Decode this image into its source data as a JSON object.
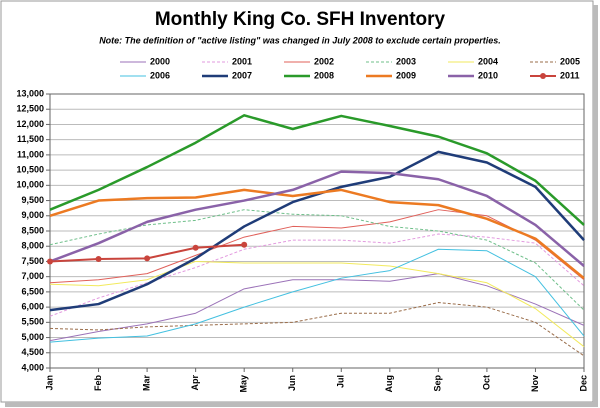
{
  "chart_data": {
    "type": "line",
    "title": "Monthly King Co. SFH Inventory",
    "subtitle": "Note: The definition of \"active listing\" was changed in July 2008 to exclude certain properties.",
    "categories": [
      "Jan",
      "Feb",
      "Mar",
      "Apr",
      "May",
      "Jun",
      "Jul",
      "Aug",
      "Sep",
      "Oct",
      "Nov",
      "Dec"
    ],
    "ylim": [
      4000,
      13000
    ],
    "yticks": [
      {
        "value": 4000,
        "label": "4,000"
      },
      {
        "value": 4500,
        "label": "4,500"
      },
      {
        "value": 5000,
        "label": "5,000"
      },
      {
        "value": 5500,
        "label": "5,500"
      },
      {
        "value": 6000,
        "label": "6,000"
      },
      {
        "value": 6500,
        "label": "6,500"
      },
      {
        "value": 7000,
        "label": "7,000"
      },
      {
        "value": 7500,
        "label": "7,500"
      },
      {
        "value": 8000,
        "label": "8,000"
      },
      {
        "value": 8500,
        "label": "8,500"
      },
      {
        "value": 9000,
        "label": "9,000"
      },
      {
        "value": 9500,
        "label": "9,500"
      },
      {
        "value": 10000,
        "label": "10,000"
      },
      {
        "value": 10500,
        "label": "10,500"
      },
      {
        "value": 11000,
        "label": "11,000"
      },
      {
        "value": 11500,
        "label": "11,500"
      },
      {
        "value": 12000,
        "label": "12,000"
      },
      {
        "value": 12500,
        "label": "12,500"
      },
      {
        "value": 13000,
        "label": "13,000"
      }
    ],
    "grid": true,
    "legend": "top",
    "series": [
      {
        "name": "2000",
        "color": "#9b72b8",
        "values": [
          4900,
          5200,
          5450,
          5800,
          6600,
          6900,
          6900,
          6850,
          7100,
          6700,
          6100,
          5400
        ]
      },
      {
        "name": "2001",
        "color": "#e29adf",
        "dashed": true,
        "values": [
          5700,
          6300,
          6800,
          7300,
          7900,
          8200,
          8200,
          8100,
          8400,
          8300,
          8100,
          6700
        ]
      },
      {
        "name": "2002",
        "color": "#e0605a",
        "values": [
          6800,
          6900,
          7100,
          7700,
          8300,
          8650,
          8600,
          8800,
          9200,
          9000,
          8200,
          6900
        ]
      },
      {
        "name": "2003",
        "color": "#6fbf8a",
        "dashed": true,
        "values": [
          8050,
          8400,
          8700,
          8850,
          9200,
          9050,
          9000,
          8650,
          8500,
          8200,
          7450,
          5900
        ]
      },
      {
        "name": "2004",
        "color": "#f2ea5c",
        "values": [
          6750,
          6700,
          6900,
          7500,
          7450,
          7450,
          7450,
          7350,
          7100,
          6800,
          5950,
          4700
        ]
      },
      {
        "name": "2005",
        "color": "#9a6d4a",
        "dashed": true,
        "values": [
          5300,
          5250,
          5350,
          5400,
          5450,
          5500,
          5800,
          5800,
          6150,
          6000,
          5500,
          4400
        ]
      },
      {
        "name": "2006",
        "color": "#43c0e0",
        "values": [
          4850,
          4980,
          5050,
          5450,
          6000,
          6500,
          6950,
          7200,
          7900,
          7850,
          7000,
          5050
        ]
      },
      {
        "name": "2007",
        "color": "#1f3c78",
        "bold": true,
        "values": [
          5900,
          6100,
          6750,
          7600,
          8650,
          9450,
          9950,
          10280,
          11100,
          10750,
          9950,
          8200
        ]
      },
      {
        "name": "2008",
        "color": "#2a9a2a",
        "bold": true,
        "values": [
          9200,
          9850,
          10600,
          11400,
          12300,
          11850,
          12280,
          11950,
          11600,
          11050,
          10150,
          8700
        ]
      },
      {
        "name": "2009",
        "color": "#ec7a22",
        "bold": true,
        "values": [
          9000,
          9500,
          9580,
          9600,
          9850,
          9650,
          9850,
          9450,
          9350,
          8900,
          8250,
          6950
        ]
      },
      {
        "name": "2010",
        "color": "#8a62a8",
        "bold": true,
        "values": [
          7500,
          8100,
          8800,
          9200,
          9500,
          9850,
          10450,
          10400,
          10200,
          9650,
          8700,
          7350
        ]
      },
      {
        "name": "2011",
        "color": "#c9443c",
        "marker": "circle",
        "values": [
          7500,
          7580,
          7600,
          7950,
          8050,
          null,
          null,
          null,
          null,
          null,
          null,
          null
        ]
      }
    ]
  }
}
